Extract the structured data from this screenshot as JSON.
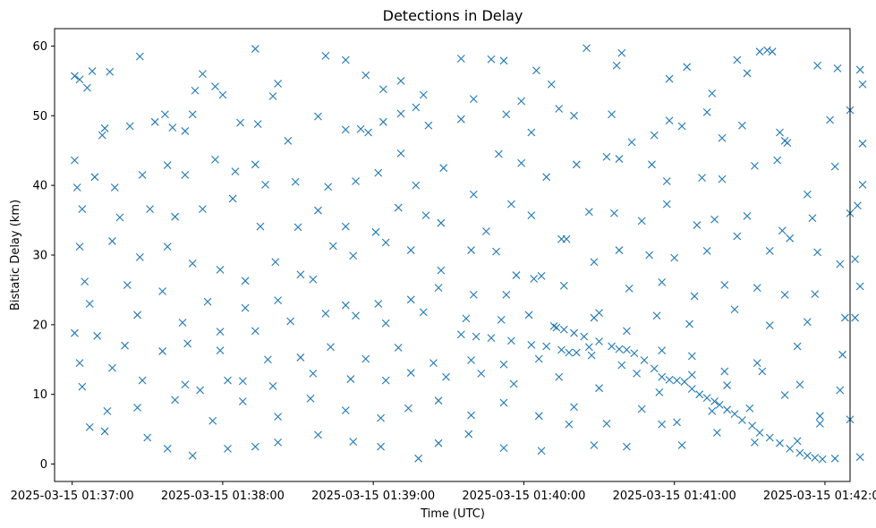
{
  "chart_data": {
    "type": "scatter",
    "title": "Detections in Delay",
    "xlabel": "Time (UTC)",
    "ylabel": "Bistatic Delay (km)",
    "x_ticks": [
      "2025-03-15 01:37:00",
      "2025-03-15 01:38:00",
      "2025-03-15 01:39:00",
      "2025-03-15 01:40:00",
      "2025-03-15 01:41:00",
      "2025-03-15 01:42:00"
    ],
    "y_ticks": [
      "0",
      "10",
      "20",
      "30",
      "40",
      "50",
      "60"
    ],
    "xlim": [
      "2025-03-15 01:36:53",
      "2025-03-15 01:42:10"
    ],
    "ylim": [
      -2.5,
      62.5
    ],
    "marker": "x",
    "color": "#1f77b4",
    "grid": false,
    "points": [
      [
        "01:37:01",
        55.7
      ],
      [
        "01:37:03",
        55.2
      ],
      [
        "01:37:08",
        56.4
      ],
      [
        "01:37:15",
        56.3
      ],
      [
        "01:37:27",
        58.5
      ],
      [
        "01:37:49",
        53.6
      ],
      [
        "01:37:52",
        56.0
      ],
      [
        "01:37:57",
        54.2
      ],
      [
        "01:38:00",
        53.0
      ],
      [
        "01:38:13",
        59.6
      ],
      [
        "01:38:22",
        54.6
      ],
      [
        "01:38:41",
        58.6
      ],
      [
        "01:38:49",
        58.0
      ],
      [
        "01:38:57",
        55.8
      ],
      [
        "01:39:04",
        53.8
      ],
      [
        "01:39:11",
        55.0
      ],
      [
        "01:39:20",
        53.0
      ],
      [
        "01:39:35",
        58.2
      ],
      [
        "01:39:47",
        58.1
      ],
      [
        "01:39:52",
        57.9
      ],
      [
        "01:40:05",
        56.5
      ],
      [
        "01:40:11",
        54.5
      ],
      [
        "01:40:25",
        59.7
      ],
      [
        "01:40:37",
        57.2
      ],
      [
        "01:40:39",
        59.0
      ],
      [
        "01:40:58",
        55.3
      ],
      [
        "01:41:05",
        57.0
      ],
      [
        "01:41:15",
        53.2
      ],
      [
        "01:41:25",
        58.0
      ],
      [
        "01:41:29",
        56.1
      ],
      [
        "01:41:34",
        59.2
      ],
      [
        "01:41:37",
        59.4
      ],
      [
        "01:41:39",
        59.2
      ],
      [
        "01:41:57",
        57.2
      ],
      [
        "01:42:05",
        56.8
      ],
      [
        "01:42:14",
        56.6
      ],
      [
        "01:42:15",
        54.5
      ],
      [
        "01:37:06",
        54.0
      ],
      [
        "01:37:12",
        47.2
      ],
      [
        "01:37:13",
        48.2
      ],
      [
        "01:37:23",
        48.5
      ],
      [
        "01:37:33",
        49.1
      ],
      [
        "01:37:37",
        50.2
      ],
      [
        "01:37:40",
        48.3
      ],
      [
        "01:37:45",
        47.8
      ],
      [
        "01:37:48",
        50.2
      ],
      [
        "01:38:07",
        49.0
      ],
      [
        "01:38:14",
        48.8
      ],
      [
        "01:38:20",
        52.8
      ],
      [
        "01:38:26",
        46.4
      ],
      [
        "01:38:38",
        49.9
      ],
      [
        "01:38:49",
        48.0
      ],
      [
        "01:38:55",
        48.1
      ],
      [
        "01:38:58",
        47.6
      ],
      [
        "01:39:04",
        49.1
      ],
      [
        "01:39:11",
        50.3
      ],
      [
        "01:39:17",
        51.2
      ],
      [
        "01:39:22",
        48.6
      ],
      [
        "01:39:35",
        49.5
      ],
      [
        "01:39:40",
        52.4
      ],
      [
        "01:39:53",
        50.2
      ],
      [
        "01:39:59",
        52.1
      ],
      [
        "01:40:03",
        47.6
      ],
      [
        "01:40:14",
        51.0
      ],
      [
        "01:40:20",
        50.0
      ],
      [
        "01:40:35",
        50.2
      ],
      [
        "01:40:43",
        46.2
      ],
      [
        "01:40:52",
        47.2
      ],
      [
        "01:40:58",
        49.3
      ],
      [
        "01:41:03",
        48.5
      ],
      [
        "01:41:13",
        50.5
      ],
      [
        "01:41:19",
        46.8
      ],
      [
        "01:41:27",
        48.6
      ],
      [
        "01:41:42",
        47.6
      ],
      [
        "01:41:45",
        46.1
      ],
      [
        "01:42:02",
        49.4
      ],
      [
        "01:42:10",
        50.8
      ],
      [
        "01:42:15",
        46.0
      ],
      [
        "01:37:01",
        43.6
      ],
      [
        "01:37:09",
        41.2
      ],
      [
        "01:37:17",
        39.7
      ],
      [
        "01:37:28",
        41.5
      ],
      [
        "01:37:38",
        42.9
      ],
      [
        "01:37:45",
        41.5
      ],
      [
        "01:37:57",
        43.7
      ],
      [
        "01:38:05",
        42.0
      ],
      [
        "01:38:13",
        43.0
      ],
      [
        "01:38:17",
        40.1
      ],
      [
        "01:38:29",
        40.5
      ],
      [
        "01:38:42",
        39.8
      ],
      [
        "01:38:53",
        40.6
      ],
      [
        "01:39:02",
        41.8
      ],
      [
        "01:39:11",
        44.6
      ],
      [
        "01:39:17",
        40.0
      ],
      [
        "01:39:28",
        42.5
      ],
      [
        "01:39:40",
        38.7
      ],
      [
        "01:39:50",
        44.5
      ],
      [
        "01:39:59",
        43.2
      ],
      [
        "01:40:09",
        41.2
      ],
      [
        "01:40:21",
        43.0
      ],
      [
        "01:40:33",
        44.1
      ],
      [
        "01:40:38",
        43.8
      ],
      [
        "01:40:51",
        43.0
      ],
      [
        "01:40:57",
        40.6
      ],
      [
        "01:41:11",
        41.1
      ],
      [
        "01:41:19",
        40.9
      ],
      [
        "01:41:32",
        42.8
      ],
      [
        "01:41:41",
        43.6
      ],
      [
        "01:41:44",
        46.4
      ],
      [
        "01:41:53",
        38.7
      ],
      [
        "01:42:04",
        42.7
      ],
      [
        "01:42:15",
        40.1
      ],
      [
        "01:37:02",
        39.7
      ],
      [
        "01:37:04",
        36.6
      ],
      [
        "01:37:19",
        35.4
      ],
      [
        "01:37:31",
        36.6
      ],
      [
        "01:37:41",
        35.5
      ],
      [
        "01:37:52",
        36.6
      ],
      [
        "01:38:04",
        38.1
      ],
      [
        "01:38:15",
        34.1
      ],
      [
        "01:38:30",
        34.0
      ],
      [
        "01:38:38",
        36.4
      ],
      [
        "01:38:49",
        34.1
      ],
      [
        "01:39:01",
        33.3
      ],
      [
        "01:39:10",
        36.8
      ],
      [
        "01:39:21",
        35.7
      ],
      [
        "01:39:27",
        34.6
      ],
      [
        "01:39:45",
        33.4
      ],
      [
        "01:39:55",
        37.3
      ],
      [
        "01:40:03",
        35.7
      ],
      [
        "01:40:15",
        32.3
      ],
      [
        "01:40:26",
        36.2
      ],
      [
        "01:40:36",
        36.0
      ],
      [
        "01:40:47",
        34.9
      ],
      [
        "01:40:57",
        37.3
      ],
      [
        "01:41:09",
        34.3
      ],
      [
        "01:41:16",
        35.1
      ],
      [
        "01:41:29",
        35.6
      ],
      [
        "01:41:43",
        33.5
      ],
      [
        "01:41:55",
        35.3
      ],
      [
        "01:42:10",
        36.0
      ],
      [
        "01:42:13",
        37.1
      ],
      [
        "01:37:03",
        31.2
      ],
      [
        "01:37:16",
        32.0
      ],
      [
        "01:37:27",
        29.7
      ],
      [
        "01:37:38",
        31.2
      ],
      [
        "01:37:48",
        28.8
      ],
      [
        "01:37:59",
        27.9
      ],
      [
        "01:38:09",
        26.3
      ],
      [
        "01:38:21",
        29.0
      ],
      [
        "01:38:31",
        27.2
      ],
      [
        "01:38:44",
        31.3
      ],
      [
        "01:38:52",
        29.9
      ],
      [
        "01:39:05",
        31.8
      ],
      [
        "01:39:15",
        30.7
      ],
      [
        "01:39:27",
        27.8
      ],
      [
        "01:39:39",
        30.7
      ],
      [
        "01:39:49",
        30.5
      ],
      [
        "01:39:57",
        27.1
      ],
      [
        "01:40:07",
        27.0
      ],
      [
        "01:40:17",
        32.3
      ],
      [
        "01:40:28",
        29.0
      ],
      [
        "01:40:38",
        30.7
      ],
      [
        "01:40:50",
        30.0
      ],
      [
        "01:41:00",
        29.6
      ],
      [
        "01:41:13",
        30.6
      ],
      [
        "01:41:25",
        32.7
      ],
      [
        "01:41:38",
        30.6
      ],
      [
        "01:41:46",
        32.4
      ],
      [
        "01:41:57",
        30.4
      ],
      [
        "01:42:06",
        28.7
      ],
      [
        "01:42:12",
        29.4
      ],
      [
        "01:37:05",
        26.2
      ],
      [
        "01:37:22",
        25.7
      ],
      [
        "01:37:36",
        24.8
      ],
      [
        "01:37:54",
        23.3
      ],
      [
        "01:38:09",
        22.4
      ],
      [
        "01:38:22",
        23.5
      ],
      [
        "01:38:36",
        26.5
      ],
      [
        "01:38:49",
        22.8
      ],
      [
        "01:39:02",
        23.0
      ],
      [
        "01:39:15",
        23.6
      ],
      [
        "01:39:26",
        25.3
      ],
      [
        "01:39:40",
        24.3
      ],
      [
        "01:39:53",
        24.3
      ],
      [
        "01:40:04",
        26.6
      ],
      [
        "01:40:16",
        25.6
      ],
      [
        "01:40:30",
        21.7
      ],
      [
        "01:40:42",
        25.2
      ],
      [
        "01:40:55",
        26.1
      ],
      [
        "01:41:08",
        24.1
      ],
      [
        "01:41:20",
        25.7
      ],
      [
        "01:41:33",
        25.3
      ],
      [
        "01:41:44",
        24.3
      ],
      [
        "01:41:56",
        24.4
      ],
      [
        "01:42:08",
        21.0
      ],
      [
        "01:42:14",
        25.5
      ],
      [
        "01:37:07",
        23.0
      ],
      [
        "01:37:26",
        21.4
      ],
      [
        "01:37:44",
        20.3
      ],
      [
        "01:37:59",
        19.0
      ],
      [
        "01:38:13",
        19.1
      ],
      [
        "01:38:27",
        20.5
      ],
      [
        "01:38:41",
        21.6
      ],
      [
        "01:38:53",
        21.3
      ],
      [
        "01:39:05",
        20.2
      ],
      [
        "01:39:20",
        21.8
      ],
      [
        "01:39:37",
        20.9
      ],
      [
        "01:39:51",
        20.7
      ],
      [
        "01:40:02",
        21.4
      ],
      [
        "01:40:13",
        19.6
      ],
      [
        "01:40:28",
        21.0
      ],
      [
        "01:40:41",
        19.1
      ],
      [
        "01:40:53",
        21.3
      ],
      [
        "01:41:06",
        20.1
      ],
      [
        "01:41:24",
        22.2
      ],
      [
        "01:41:38",
        19.9
      ],
      [
        "01:41:53",
        20.4
      ],
      [
        "01:42:12",
        21.0
      ],
      [
        "01:37:01",
        18.8
      ],
      [
        "01:37:10",
        18.4
      ],
      [
        "01:37:21",
        17.0
      ],
      [
        "01:37:36",
        16.2
      ],
      [
        "01:37:46",
        17.3
      ],
      [
        "01:37:59",
        16.3
      ],
      [
        "01:38:18",
        15.0
      ],
      [
        "01:38:31",
        15.3
      ],
      [
        "01:38:43",
        16.8
      ],
      [
        "01:38:57",
        15.1
      ],
      [
        "01:39:10",
        16.7
      ],
      [
        "01:39:24",
        14.5
      ],
      [
        "01:39:39",
        14.9
      ],
      [
        "01:39:52",
        14.3
      ],
      [
        "01:40:06",
        15.1
      ],
      [
        "01:40:18",
        16.0
      ],
      [
        "01:40:26",
        16.8
      ],
      [
        "01:40:39",
        14.2
      ],
      [
        "01:40:55",
        16.3
      ],
      [
        "01:41:07",
        15.5
      ],
      [
        "01:41:20",
        13.3
      ],
      [
        "01:41:33",
        14.5
      ],
      [
        "01:41:49",
        16.9
      ],
      [
        "01:42:07",
        15.7
      ],
      [
        "01:37:03",
        14.5
      ],
      [
        "01:37:16",
        13.8
      ],
      [
        "01:37:28",
        12.0
      ],
      [
        "01:37:45",
        11.4
      ],
      [
        "01:37:51",
        10.6
      ],
      [
        "01:38:02",
        12.0
      ],
      [
        "01:38:08",
        11.9
      ],
      [
        "01:38:20",
        11.2
      ],
      [
        "01:38:36",
        13.0
      ],
      [
        "01:38:51",
        12.2
      ],
      [
        "01:39:05",
        12.0
      ],
      [
        "01:39:15",
        13.1
      ],
      [
        "01:39:29",
        12.5
      ],
      [
        "01:39:43",
        13.0
      ],
      [
        "01:39:56",
        11.5
      ],
      [
        "01:40:14",
        12.5
      ],
      [
        "01:40:30",
        10.9
      ],
      [
        "01:40:45",
        13.0
      ],
      [
        "01:40:54",
        10.3
      ],
      [
        "01:41:07",
        12.8
      ],
      [
        "01:41:21",
        11.3
      ],
      [
        "01:41:35",
        13.3
      ],
      [
        "01:41:50",
        11.4
      ],
      [
        "01:42:06",
        10.6
      ],
      [
        "01:37:04",
        11.1
      ],
      [
        "01:37:14",
        7.6
      ],
      [
        "01:37:26",
        8.1
      ],
      [
        "01:37:41",
        9.2
      ],
      [
        "01:37:56",
        6.2
      ],
      [
        "01:38:08",
        9.0
      ],
      [
        "01:38:22",
        6.8
      ],
      [
        "01:38:35",
        9.4
      ],
      [
        "01:38:49",
        7.7
      ],
      [
        "01:39:03",
        6.6
      ],
      [
        "01:39:14",
        8.0
      ],
      [
        "01:39:26",
        9.1
      ],
      [
        "01:39:39",
        7.0
      ],
      [
        "01:39:52",
        8.8
      ],
      [
        "01:40:06",
        6.9
      ],
      [
        "01:40:20",
        8.2
      ],
      [
        "01:40:33",
        5.8
      ],
      [
        "01:40:47",
        7.9
      ],
      [
        "01:41:01",
        6.0
      ],
      [
        "01:41:15",
        7.6
      ],
      [
        "01:41:30",
        8.0
      ],
      [
        "01:41:44",
        9.9
      ],
      [
        "01:41:58",
        6.9
      ],
      [
        "01:42:10",
        6.4
      ],
      [
        "01:37:07",
        5.3
      ],
      [
        "01:37:13",
        4.7
      ],
      [
        "01:37:30",
        3.8
      ],
      [
        "01:37:38",
        2.2
      ],
      [
        "01:37:48",
        1.2
      ],
      [
        "01:38:02",
        2.2
      ],
      [
        "01:38:13",
        2.5
      ],
      [
        "01:38:22",
        3.1
      ],
      [
        "01:38:38",
        4.2
      ],
      [
        "01:38:52",
        3.2
      ],
      [
        "01:39:03",
        2.5
      ],
      [
        "01:39:18",
        0.8
      ],
      [
        "01:39:26",
        3.0
      ],
      [
        "01:39:38",
        4.3
      ],
      [
        "01:39:52",
        2.3
      ],
      [
        "01:40:07",
        1.9
      ],
      [
        "01:40:18",
        5.7
      ],
      [
        "01:40:28",
        2.7
      ],
      [
        "01:40:41",
        2.5
      ],
      [
        "01:40:55",
        5.7
      ],
      [
        "01:41:03",
        2.7
      ],
      [
        "01:41:17",
        4.5
      ],
      [
        "01:41:32",
        3.1
      ],
      [
        "01:41:49",
        3.3
      ],
      [
        "01:41:58",
        5.8
      ],
      [
        "01:42:04",
        0.8
      ],
      [
        "01:42:14",
        1.0
      ],
      [
        "01:40:12",
        19.8
      ],
      [
        "01:40:16",
        19.3
      ],
      [
        "01:40:20",
        18.8
      ],
      [
        "01:40:24",
        18.3
      ],
      [
        "01:40:30",
        17.6
      ],
      [
        "01:40:35",
        16.9
      ],
      [
        "01:40:38",
        16.5
      ],
      [
        "01:40:41",
        16.4
      ],
      [
        "01:40:44",
        15.9
      ],
      [
        "01:40:48",
        14.9
      ],
      [
        "01:40:52",
        13.7
      ],
      [
        "01:40:55",
        12.5
      ],
      [
        "01:40:58",
        12.1
      ],
      [
        "01:41:01",
        12.0
      ],
      [
        "01:41:04",
        11.8
      ],
      [
        "01:41:07",
        10.8
      ],
      [
        "01:41:10",
        10.0
      ],
      [
        "01:41:13",
        9.5
      ],
      [
        "01:41:16",
        9.0
      ],
      [
        "01:41:18",
        8.5
      ],
      [
        "01:41:21",
        7.8
      ],
      [
        "01:41:24",
        7.2
      ],
      [
        "01:41:27",
        6.3
      ],
      [
        "01:41:31",
        5.5
      ],
      [
        "01:41:34",
        4.5
      ],
      [
        "01:41:38",
        3.8
      ],
      [
        "01:41:42",
        3.0
      ],
      [
        "01:41:46",
        2.2
      ],
      [
        "01:41:50",
        1.6
      ],
      [
        "01:41:53",
        1.2
      ],
      [
        "01:41:56",
        0.9
      ],
      [
        "01:41:59",
        0.7
      ],
      [
        "01:39:35",
        18.6
      ],
      [
        "01:39:41",
        18.3
      ],
      [
        "01:39:47",
        18.1
      ],
      [
        "01:39:55",
        17.7
      ],
      [
        "01:40:03",
        17.1
      ],
      [
        "01:40:09",
        16.9
      ],
      [
        "01:40:15",
        16.4
      ],
      [
        "01:40:21",
        16.0
      ],
      [
        "01:40:27",
        15.6
      ]
    ]
  }
}
